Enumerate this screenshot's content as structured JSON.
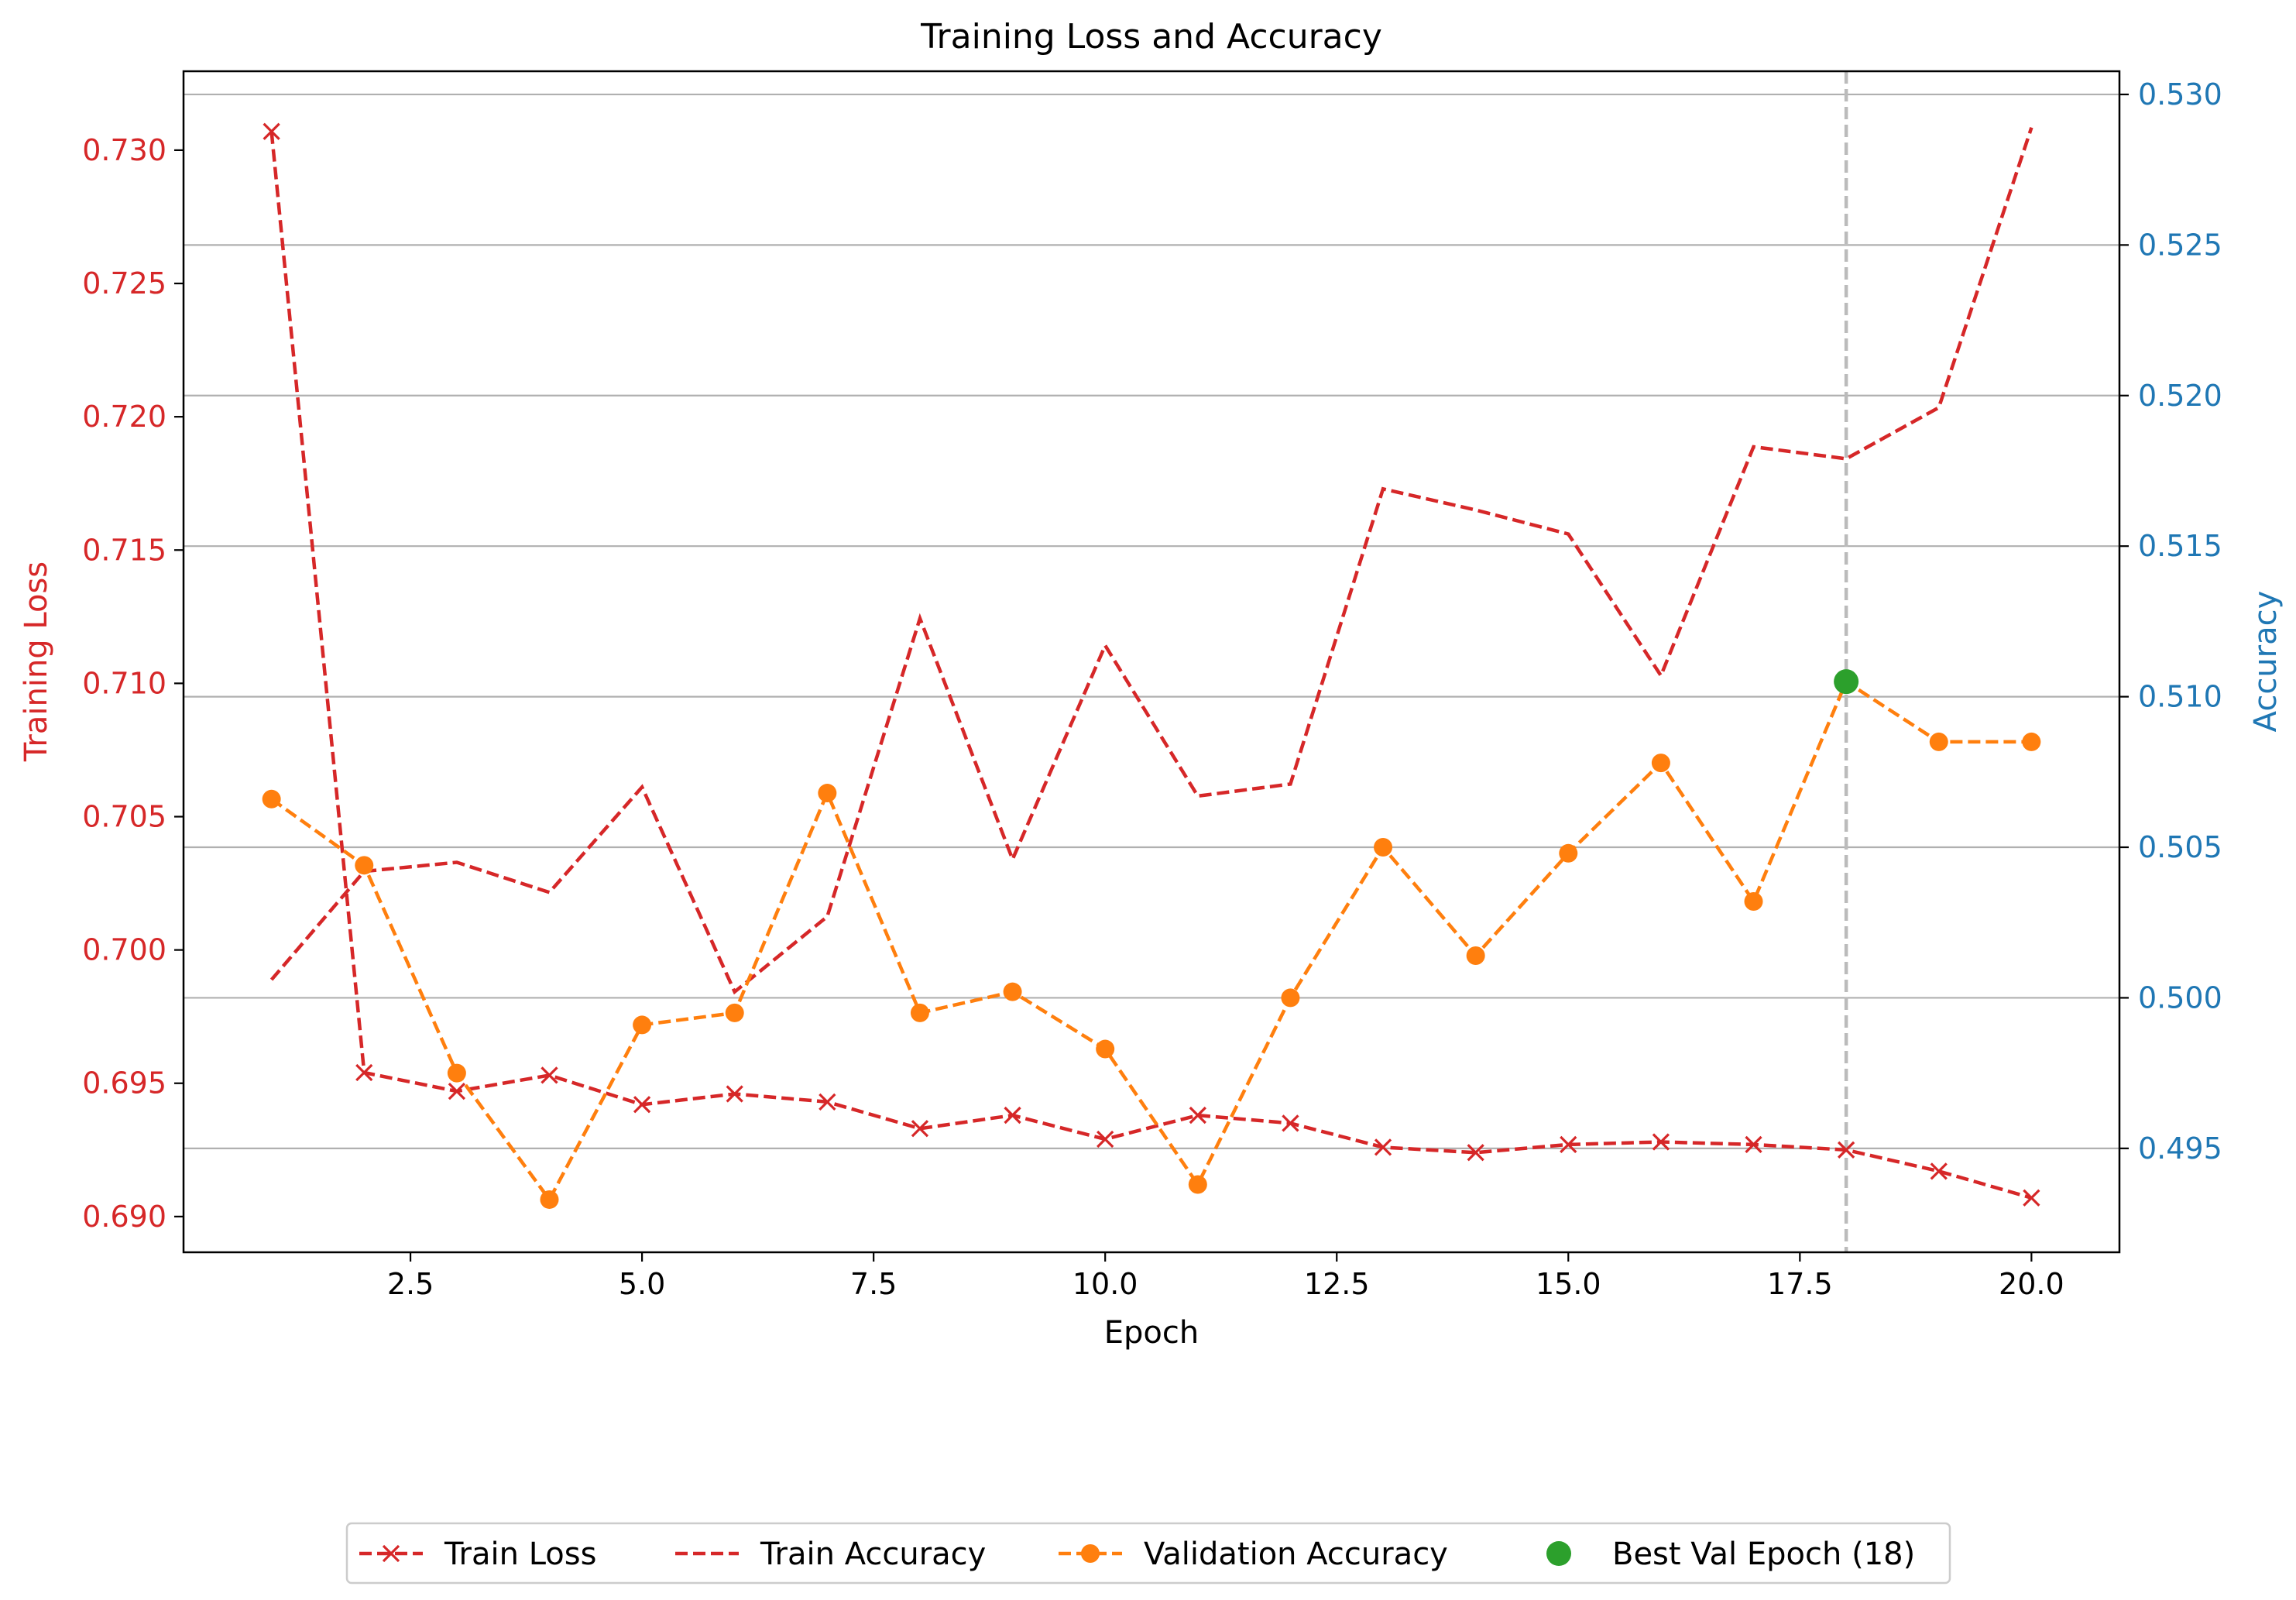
{
  "chart_data": {
    "type": "line",
    "title": "Training Loss and Accuracy",
    "xlabel": "Epoch",
    "ylabel_left": "Training Loss",
    "ylabel_right": "Accuracy",
    "xlim": [
      0.05,
      20.95
    ],
    "ylim_left": [
      0.68866,
      0.73296
    ],
    "ylim_right": [
      0.49155,
      0.53077
    ],
    "xticks": [
      2.5,
      5.0,
      7.5,
      10.0,
      12.5,
      15.0,
      17.5,
      20.0
    ],
    "xtick_labels": [
      "2.5",
      "5.0",
      "7.5",
      "10.0",
      "12.5",
      "15.0",
      "17.5",
      "20.0"
    ],
    "yticks_left": [
      0.69,
      0.695,
      0.7,
      0.705,
      0.71,
      0.715,
      0.72,
      0.725,
      0.73
    ],
    "ytick_labels_left": [
      "0.690",
      "0.695",
      "0.700",
      "0.705",
      "0.710",
      "0.715",
      "0.720",
      "0.725",
      "0.730"
    ],
    "yticks_right": [
      0.495,
      0.5,
      0.505,
      0.51,
      0.515,
      0.52,
      0.525,
      0.53
    ],
    "ytick_labels_right": [
      "0.495",
      "0.500",
      "0.505",
      "0.510",
      "0.515",
      "0.520",
      "0.525",
      "0.530"
    ],
    "grid": "horizontal (right axis)",
    "legend_placement": "bottom-center",
    "x": [
      1,
      2,
      3,
      4,
      5,
      6,
      7,
      8,
      9,
      10,
      11,
      12,
      13,
      14,
      15,
      16,
      17,
      18,
      19,
      20
    ],
    "series": [
      {
        "name": "Train Loss",
        "axis": "left",
        "color": "#d62728",
        "marker": "x",
        "values": [
          0.7307,
          0.6954,
          0.6947,
          0.6953,
          0.6942,
          0.6946,
          0.6943,
          0.6933,
          0.6938,
          0.6929,
          0.6938,
          0.6935,
          0.6926,
          0.6924,
          0.6927,
          0.6928,
          0.6927,
          0.6925,
          0.6917,
          0.6907
        ]
      },
      {
        "name": "Train Accuracy",
        "axis": "right",
        "color": "#d62728",
        "marker": "none",
        "values": [
          0.5006,
          0.5042,
          0.5045,
          0.5035,
          0.507,
          0.5002,
          0.5027,
          0.5126,
          0.5046,
          0.5117,
          0.5067,
          0.5071,
          0.5169,
          0.5162,
          0.5154,
          0.5107,
          0.5183,
          0.5179,
          0.5196,
          0.5289
        ]
      },
      {
        "name": "Validation Accuracy",
        "axis": "right",
        "color": "#ff7f0e",
        "marker": "o",
        "values": [
          0.5066,
          0.5044,
          0.4975,
          0.4933,
          0.4991,
          0.4995,
          0.5068,
          0.4995,
          0.5002,
          0.4983,
          0.4938,
          0.5,
          0.505,
          0.5014,
          0.5048,
          0.5078,
          0.5032,
          0.5105,
          0.5085,
          0.5085
        ]
      }
    ],
    "annotations": [
      {
        "name": "Best Val Epoch (18)",
        "x": 18,
        "y": 0.5105,
        "axis": "right",
        "color": "#2ca02c",
        "marker": "o"
      },
      {
        "type": "vline",
        "x": 18,
        "color": "#bbbbbb",
        "style": "dashed"
      }
    ],
    "colors": {
      "left_axis": "#d62728",
      "right_axis": "#1f77b4",
      "grid": "#b0b0b0",
      "vline": "#bbbbbb"
    }
  }
}
